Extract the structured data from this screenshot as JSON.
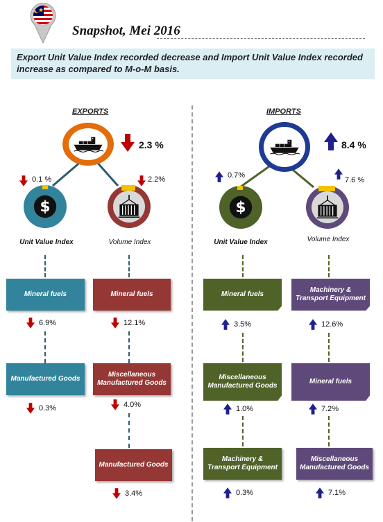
{
  "header": {
    "title": "Snapshot, Mei 2016",
    "banner": "Export Unit Value Index recorded decrease and Import Unit Value Index recorded increase as compared to M-o-M basis."
  },
  "exports": {
    "heading": "EXPORTS",
    "main_change": "2.3 %",
    "unit_change": "0.1 %",
    "volume_change": "2.2%",
    "unit_caption": "Unit Value Index",
    "volume_caption": "Volume Index",
    "unit_items": [
      {
        "label": "Mineral fuels",
        "change": "6.9%"
      },
      {
        "label": "Manufactured Goods",
        "change": "0.3%"
      }
    ],
    "volume_items": [
      {
        "label": "Mineral fuels",
        "change": "12.1%"
      },
      {
        "label": "Miscellaneous Manufactured Goods",
        "change": "4.0%"
      },
      {
        "label": "Manufactured Goods",
        "change": "3.4%"
      }
    ]
  },
  "imports": {
    "heading": "IMPORTS",
    "main_change": "8.4 %",
    "unit_change": "0.7%",
    "volume_change": "7.6 %",
    "unit_caption": "Unit Value Index",
    "volume_caption": "Volume Index",
    "unit_items": [
      {
        "label": "Mineral fuels",
        "change": "3.5%"
      },
      {
        "label": "Miscellaneous Manufactured Goods",
        "change": "1.0%"
      },
      {
        "label": "Machinery & Transport Equipment",
        "change": "0.3%"
      }
    ],
    "volume_items": [
      {
        "label": "Machinery & Transport Equipment",
        "change": "12.6%"
      },
      {
        "label": "Mineral fuels",
        "change": "7.2%"
      },
      {
        "label": "Miscellaneous Manufactured Goods",
        "change": "7.1%"
      }
    ]
  },
  "colors": {
    "down_arrow": "#c00000",
    "up_arrow": "#1f1f8f",
    "export_ring": "#e46c0a",
    "import_ring": "#1f3a93",
    "unit_ring_exp": "#31849b",
    "vol_ring_exp": "#953735",
    "unit_ring_imp": "#4f6228",
    "vol_ring_imp": "#5f497a"
  },
  "icons": [
    "malaysia-flag-pin-icon",
    "ship-icon",
    "dollar-icon",
    "container-crane-icon",
    "down-arrow-icon",
    "up-arrow-icon"
  ]
}
